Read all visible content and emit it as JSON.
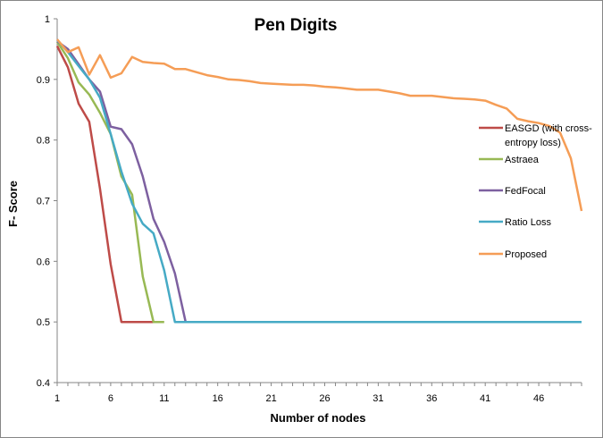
{
  "chart_data": {
    "type": "line",
    "title": "Pen Digits",
    "xlabel": "Number of nodes",
    "ylabel": "F- Score",
    "ylim": [
      0.4,
      1
    ],
    "xlim": [
      1,
      50
    ],
    "x_ticks": [
      1,
      6,
      11,
      16,
      21,
      26,
      31,
      36,
      41,
      46
    ],
    "y_ticks": [
      0.4,
      0.5,
      0.6,
      0.7,
      0.8,
      0.9,
      1
    ],
    "y_tick_labels": [
      "0.4",
      "0.5",
      "0.6",
      "0.7",
      "0.8",
      "0.9",
      "1"
    ],
    "grid": false,
    "legend_position": "right",
    "series": [
      {
        "name_lines": [
          "EASGD (with cross-",
          "entropy loss)"
        ],
        "color": "#BE4B48",
        "x": [
          1,
          2,
          3,
          4,
          5,
          6,
          7,
          8,
          9,
          10
        ],
        "y": [
          0.955,
          0.92,
          0.86,
          0.83,
          0.72,
          0.595,
          0.5,
          0.5,
          0.5,
          0.5
        ]
      },
      {
        "name_lines": [
          "Astraea"
        ],
        "color": "#98B954",
        "x": [
          1,
          2,
          3,
          4,
          5,
          6,
          7,
          8,
          9,
          10,
          11
        ],
        "y": [
          0.962,
          0.935,
          0.895,
          0.875,
          0.845,
          0.81,
          0.74,
          0.71,
          0.575,
          0.5,
          0.5
        ]
      },
      {
        "name_lines": [
          "FedFocal"
        ],
        "color": "#7D60A0",
        "x": [
          1,
          2,
          3,
          4,
          5,
          6,
          7,
          8,
          9,
          10,
          11,
          12,
          13
        ],
        "y": [
          0.963,
          0.95,
          0.925,
          0.9,
          0.88,
          0.822,
          0.818,
          0.793,
          0.74,
          0.67,
          0.632,
          0.58,
          0.5
        ]
      },
      {
        "name_lines": [
          "Ratio Loss"
        ],
        "color": "#46AAC5",
        "x": [
          1,
          2,
          3,
          4,
          5,
          6,
          7,
          8,
          9,
          10,
          11,
          12,
          13,
          20,
          30,
          40,
          50
        ],
        "y": [
          0.965,
          0.945,
          0.922,
          0.9,
          0.87,
          0.81,
          0.748,
          0.695,
          0.662,
          0.646,
          0.585,
          0.5,
          0.5,
          0.5,
          0.5,
          0.5,
          0.5
        ]
      },
      {
        "name_lines": [
          "Proposed"
        ],
        "color": "#F59D56",
        "x": [
          1,
          2,
          3,
          4,
          5,
          6,
          7,
          8,
          9,
          10,
          11,
          12,
          13,
          14,
          15,
          16,
          17,
          18,
          19,
          20,
          21,
          22,
          23,
          24,
          25,
          26,
          27,
          28,
          29,
          30,
          31,
          32,
          33,
          34,
          35,
          36,
          37,
          38,
          39,
          40,
          41,
          42,
          43,
          44,
          45,
          46,
          47,
          48,
          49,
          50
        ],
        "y": [
          0.966,
          0.945,
          0.953,
          0.908,
          0.94,
          0.903,
          0.91,
          0.937,
          0.929,
          0.927,
          0.926,
          0.917,
          0.917,
          0.912,
          0.907,
          0.904,
          0.9,
          0.899,
          0.897,
          0.894,
          0.893,
          0.892,
          0.891,
          0.891,
          0.89,
          0.888,
          0.887,
          0.885,
          0.883,
          0.883,
          0.883,
          0.88,
          0.877,
          0.873,
          0.873,
          0.873,
          0.871,
          0.869,
          0.868,
          0.867,
          0.865,
          0.858,
          0.852,
          0.835,
          0.831,
          0.828,
          0.823,
          0.812,
          0.77,
          0.683
        ]
      }
    ]
  }
}
